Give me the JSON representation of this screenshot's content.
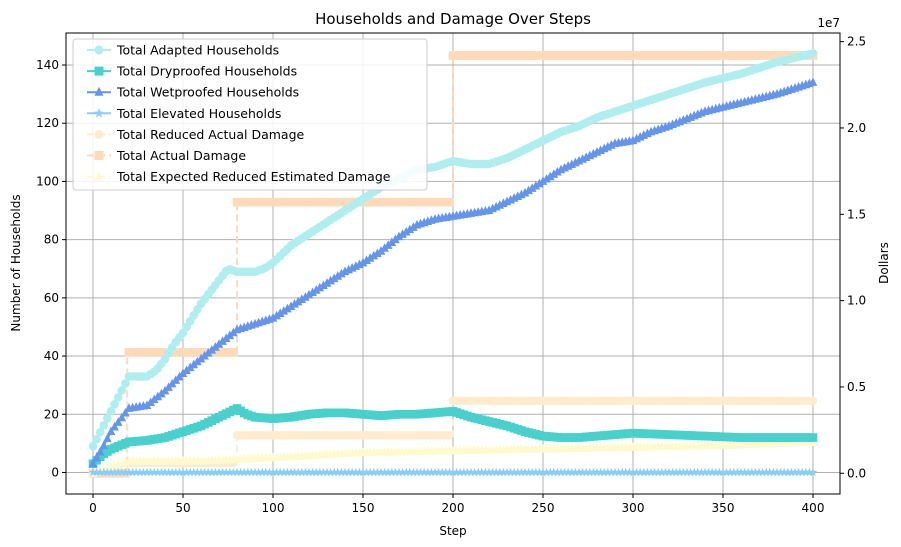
{
  "chart_data": {
    "type": "line",
    "title": "Households and Damage Over Steps",
    "xlabel": "Step",
    "ylabel": "Number of Households",
    "y2label": "Dollars",
    "y2_offset_text": "1e7",
    "xlim": [
      -15,
      415
    ],
    "ylim": [
      -7.4,
      151
    ],
    "y2lim": [
      -0.12,
      2.55
    ],
    "xticks": [
      0,
      50,
      100,
      150,
      200,
      250,
      300,
      350,
      400
    ],
    "yticks": [
      0,
      20,
      40,
      60,
      80,
      100,
      120,
      140
    ],
    "y2ticks": [
      0.0,
      0.5,
      1.0,
      1.5,
      2.0,
      2.5
    ],
    "y2tick_labels": [
      "0.0",
      "0.5",
      "1.0",
      "1.5",
      "2.0",
      "2.5"
    ],
    "grid": true,
    "legend_position": "top-left",
    "series": [
      {
        "name": "Total Adapted Households",
        "axis": "left",
        "color": "#AFEEEE",
        "marker": "circle",
        "x": [
          0,
          5,
          10,
          15,
          20,
          25,
          30,
          35,
          40,
          45,
          50,
          55,
          60,
          65,
          70,
          75,
          80,
          85,
          90,
          95,
          100,
          110,
          120,
          130,
          140,
          150,
          160,
          170,
          180,
          190,
          200,
          210,
          220,
          230,
          240,
          250,
          260,
          270,
          280,
          290,
          300,
          320,
          340,
          360,
          380,
          400
        ],
        "values": [
          9,
          15,
          21,
          27,
          33,
          33,
          33,
          35,
          39,
          44,
          48,
          53,
          58,
          62,
          66,
          70,
          69,
          69,
          69,
          70,
          72,
          78,
          82,
          86,
          90,
          94,
          98,
          101,
          104,
          105,
          107,
          106,
          106,
          108,
          111,
          114,
          117,
          119,
          122,
          124,
          126,
          130,
          134,
          137,
          141,
          144
        ]
      },
      {
        "name": "Total Dryproofed Households",
        "axis": "left",
        "color": "#48D1CC",
        "marker": "square",
        "x": [
          0,
          5,
          10,
          20,
          30,
          40,
          50,
          60,
          70,
          80,
          85,
          90,
          100,
          110,
          120,
          130,
          140,
          150,
          160,
          170,
          180,
          190,
          200,
          210,
          220,
          230,
          240,
          250,
          260,
          270,
          280,
          290,
          300,
          320,
          340,
          360,
          380,
          400
        ],
        "values": [
          3,
          6,
          8,
          10.5,
          11,
          12,
          14,
          16,
          19,
          22,
          20,
          19,
          18.5,
          19,
          20,
          20.5,
          20.5,
          20,
          19.5,
          20,
          20,
          20.5,
          21,
          19,
          17.5,
          16,
          14,
          12.5,
          12,
          12,
          12.5,
          13,
          13.5,
          13,
          12.5,
          12,
          12,
          12
        ]
      },
      {
        "name": "Total Wetproofed Households",
        "axis": "left",
        "color": "#6495ED",
        "marker": "triangle",
        "x": [
          0,
          5,
          10,
          20,
          30,
          40,
          50,
          60,
          70,
          80,
          90,
          100,
          110,
          120,
          130,
          140,
          150,
          160,
          170,
          180,
          190,
          200,
          210,
          220,
          230,
          240,
          250,
          260,
          270,
          280,
          290,
          300,
          310,
          320,
          340,
          360,
          380,
          400
        ],
        "values": [
          3,
          8,
          14,
          22,
          23,
          28,
          34,
          39,
          44,
          49,
          51,
          53,
          57,
          61,
          65,
          69,
          72,
          76,
          81,
          85,
          87,
          88,
          89,
          90,
          93,
          96,
          100,
          104,
          107,
          110,
          113,
          114,
          117,
          119,
          124,
          127,
          130,
          134
        ]
      },
      {
        "name": "Total Elevated Households",
        "axis": "left",
        "color": "#87CEFA",
        "marker": "star",
        "x": [
          0,
          400
        ],
        "values": [
          0,
          0
        ]
      },
      {
        "name": "Total Reduced Actual Damage",
        "axis": "right",
        "color": "#FFEBCD",
        "marker": "circle",
        "dashed": true,
        "x": [
          0,
          19,
          19,
          80,
          80,
          200,
          200,
          400
        ],
        "values": [
          0.0,
          0.0,
          0.06,
          0.06,
          0.22,
          0.22,
          0.42,
          0.42
        ]
      },
      {
        "name": "Total Actual Damage",
        "axis": "right",
        "color": "#FFDAB9",
        "marker": "square",
        "dashed": true,
        "x": [
          0,
          19,
          19,
          80,
          80,
          200,
          200,
          400
        ],
        "values": [
          0.0,
          0.0,
          0.7,
          0.7,
          1.57,
          1.57,
          2.42,
          2.42
        ]
      },
      {
        "name": "Total Expected Reduced Estimated Damage",
        "axis": "right",
        "color": "#FFFACD",
        "marker": "triangle",
        "dashed": true,
        "x": [
          0,
          20,
          40,
          60,
          80,
          100,
          150,
          200,
          250,
          300,
          350,
          400
        ],
        "values": [
          0.0,
          0.07,
          0.07,
          0.07,
          0.08,
          0.09,
          0.12,
          0.13,
          0.14,
          0.15,
          0.16,
          0.18
        ]
      }
    ]
  }
}
